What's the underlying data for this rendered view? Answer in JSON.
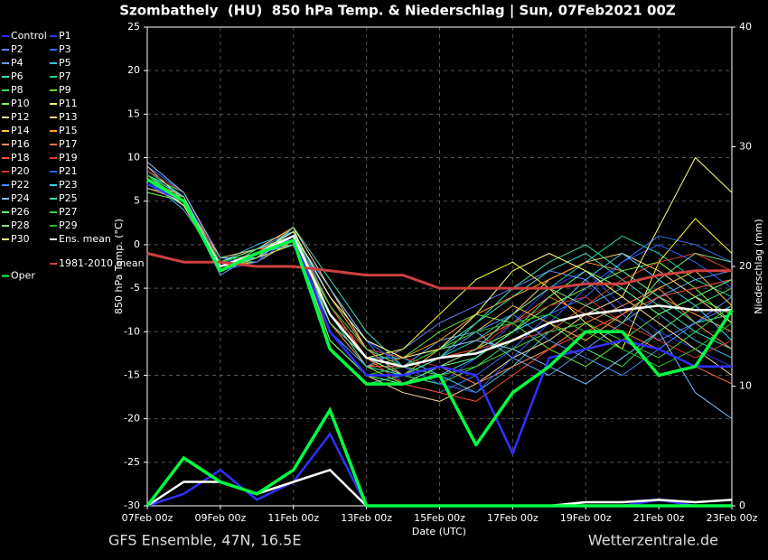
{
  "chart_data": {
    "type": "line",
    "title": "Szombathely  (HU)  850 hPa Temp. & Niederschlag | Sun, 07Feb2021 00Z",
    "ylabel": "850 hPa Temp. (°C)",
    "y2label": "Niederschlag (mm)",
    "xlabel": "Date (UTC)",
    "footer_left": "GFS Ensemble, 47N, 16.5E",
    "footer_right": "Wetterzentrale.de",
    "x": [
      0,
      1,
      2,
      3,
      4,
      5,
      6,
      7,
      8,
      9,
      10,
      11,
      12,
      13,
      14,
      15,
      16
    ],
    "xlim": [
      0,
      16
    ],
    "xticks": [
      {
        "value": 0,
        "label": "07Feb 00z"
      },
      {
        "value": 2,
        "label": "09Feb 00z"
      },
      {
        "value": 4,
        "label": "11Feb 00z"
      },
      {
        "value": 6,
        "label": "13Feb 00z"
      },
      {
        "value": 8,
        "label": "15Feb 00z"
      },
      {
        "value": 10,
        "label": "17Feb 00z"
      },
      {
        "value": 12,
        "label": "19Feb 00z"
      },
      {
        "value": 14,
        "label": "21Feb 00z"
      },
      {
        "value": 16,
        "label": "23Feb 00z"
      }
    ],
    "ylim": [
      -30,
      25
    ],
    "yticks": [
      -30,
      -25,
      -20,
      -15,
      -10,
      -5,
      0,
      5,
      10,
      15,
      20,
      25
    ],
    "y2lim": [
      0,
      40
    ],
    "y2ticks": [
      0,
      10,
      20,
      30,
      40
    ],
    "grid": true,
    "series": [
      {
        "name": "Control",
        "color": "#3030ff",
        "values": [
          7,
          5,
          -2.5,
          -1,
          1,
          -10,
          -15,
          -15,
          -14,
          -15,
          -24,
          -13,
          -12,
          -11,
          -12,
          -14,
          -14
        ],
        "precip": [
          0,
          1,
          3,
          0.5,
          2,
          6,
          0,
          0,
          0,
          0,
          0,
          0,
          0,
          0,
          0.5,
          0,
          0
        ]
      },
      {
        "name": "P1",
        "color": "#2040e0",
        "values": [
          8,
          5.5,
          -2,
          -1.5,
          1.5,
          -6,
          -12,
          -15,
          -16,
          -13,
          -9,
          -5,
          -3,
          -7,
          -10,
          -12,
          -14
        ]
      },
      {
        "name": "P2",
        "color": "#6080ff",
        "values": [
          7,
          4.5,
          -3,
          -0.5,
          0.5,
          -9,
          -14,
          -12,
          -9,
          -7,
          -5,
          -3,
          -4,
          -8,
          -11,
          -9,
          -6
        ]
      },
      {
        "name": "P3",
        "color": "#3070ff",
        "values": [
          9,
          6,
          -1.5,
          -2,
          2,
          -5,
          -11,
          -16,
          -17,
          -15,
          -12,
          -8,
          -6,
          -2,
          1,
          0,
          -2
        ]
      },
      {
        "name": "P4",
        "color": "#60a0ff",
        "values": [
          6.5,
          5,
          -3.5,
          -1,
          0,
          -10,
          -15,
          -14,
          -11,
          -10,
          -13,
          -15,
          -12,
          -9,
          -6,
          -4,
          -3
        ]
      },
      {
        "name": "P5",
        "color": "#40c0e0",
        "values": [
          7.5,
          4,
          -2,
          0,
          1.5,
          -7,
          -13,
          -13,
          -15,
          -17,
          -14,
          -10,
          -7,
          -5,
          -8,
          -11,
          -13
        ]
      },
      {
        "name": "P6",
        "color": "#40e0c0",
        "values": [
          8.5,
          5.5,
          -2.5,
          -1.5,
          2,
          -4,
          -10,
          -14,
          -12,
          -9,
          -6,
          -3,
          -1,
          -4,
          -7,
          -10,
          -12
        ]
      },
      {
        "name": "P7",
        "color": "#20d0a0",
        "values": [
          7,
          5,
          -3,
          -1,
          1,
          -12,
          -16,
          -15,
          -13,
          -11,
          -8,
          -5,
          -2,
          1,
          -1,
          -4,
          -6
        ]
      },
      {
        "name": "P8",
        "color": "#40e060",
        "values": [
          8,
          6,
          -2,
          -2,
          0.5,
          -8,
          -13,
          -15,
          -16,
          -14,
          -11,
          -9,
          -12,
          -14,
          -10,
          -7,
          -5
        ]
      },
      {
        "name": "P9",
        "color": "#60e040",
        "values": [
          7.5,
          4.5,
          -3,
          -0.5,
          1,
          -6,
          -12,
          -13,
          -10,
          -8,
          -9,
          -12,
          -14,
          -11,
          -8,
          -6,
          -8
        ]
      },
      {
        "name": "P10",
        "color": "#80ff40",
        "values": [
          6,
          5,
          -2,
          -1,
          1.5,
          -9,
          -14,
          -16,
          -14,
          -12,
          -10,
          -7,
          -5,
          -3,
          -2,
          -5,
          -9
        ]
      },
      {
        "name": "P11",
        "color": "#ffff40",
        "values": [
          8,
          5,
          -3,
          -1.5,
          0,
          -7,
          -13,
          -12,
          -8,
          -4,
          -2,
          -5,
          -9,
          -12,
          -2,
          3,
          -1
        ]
      },
      {
        "name": "P12",
        "color": "#ffe0a0",
        "values": [
          7.5,
          5.5,
          -2.5,
          -1,
          1,
          -11,
          -15,
          -17,
          -18,
          -16,
          -13,
          -11,
          -8,
          -6,
          -9,
          -12,
          -15
        ]
      },
      {
        "name": "P13",
        "color": "#ffd080",
        "values": [
          9,
          5,
          -1.5,
          -0.5,
          2,
          -5,
          -12,
          -14,
          -13,
          -12,
          -8,
          -4,
          -2,
          -1,
          -3,
          -6,
          -9
        ]
      },
      {
        "name": "P14",
        "color": "#ffc040",
        "values": [
          7,
          4.5,
          -2.5,
          -2,
          0.5,
          -8,
          -13,
          -15,
          -12,
          -10,
          -7,
          -9,
          -11,
          -8,
          -5,
          -3,
          -7
        ]
      },
      {
        "name": "P15",
        "color": "#ffa020",
        "values": [
          8,
          5,
          -2,
          -1,
          1,
          -10,
          -14,
          -13,
          -11,
          -8,
          -6,
          -4,
          -2,
          -3,
          -6,
          -8,
          -10
        ]
      },
      {
        "name": "P16",
        "color": "#ff9060",
        "values": [
          7.5,
          5.5,
          -3,
          -1,
          1.5,
          -6,
          -12,
          -15,
          -14,
          -16,
          -14,
          -12,
          -9,
          -7,
          -5,
          -9,
          -12
        ]
      },
      {
        "name": "P17",
        "color": "#ff7040",
        "values": [
          6.5,
          5,
          -2,
          -0.5,
          0,
          -9,
          -14,
          -14,
          -12,
          -11,
          -9,
          -6,
          -8,
          -10,
          -12,
          -14,
          -16
        ]
      },
      {
        "name": "P18",
        "color": "#ff5030",
        "values": [
          8,
          4.5,
          -3,
          -1.5,
          1,
          -7,
          -13,
          -16,
          -17,
          -18,
          -15,
          -12,
          -10,
          -8,
          -6,
          -5,
          -4
        ]
      },
      {
        "name": "P19",
        "color": "#e04020",
        "values": [
          7,
          5,
          -2.5,
          -1,
          2,
          -11,
          -15,
          -15,
          -13,
          -12,
          -11,
          -10,
          -7,
          -4,
          -2,
          -1,
          -3
        ]
      },
      {
        "name": "P20",
        "color": "#d03030",
        "values": [
          8.5,
          6,
          -2,
          -1,
          0.5,
          -8,
          -12,
          -13,
          -14,
          -12,
          -9,
          -7,
          -6,
          -9,
          -11,
          -13,
          -11
        ]
      },
      {
        "name": "P21",
        "color": "#3060ff",
        "values": [
          7.5,
          5,
          -3,
          -2,
          1,
          -6,
          -11,
          -14,
          -16,
          -17,
          -13,
          -9,
          -5,
          -2,
          0,
          -2,
          -5
        ]
      },
      {
        "name": "P22",
        "color": "#4090ff",
        "values": [
          7,
          4.5,
          -2,
          -0.5,
          1.5,
          -10,
          -14,
          -15,
          -13,
          -10,
          -8,
          -11,
          -13,
          -15,
          -12,
          -9,
          -7
        ]
      },
      {
        "name": "P23",
        "color": "#40d0ff",
        "values": [
          8,
          5.5,
          -2.5,
          -1,
          0,
          -9,
          -13,
          -14,
          -15,
          -13,
          -10,
          -8,
          -4,
          -1,
          -4,
          -7,
          -11
        ]
      },
      {
        "name": "P24",
        "color": "#80c0ff",
        "values": [
          9.5,
          6,
          -1.5,
          -1.5,
          1,
          -5,
          -11,
          -13,
          -12,
          -11,
          -12,
          -14,
          -16,
          -13,
          -10,
          -17,
          -20
        ]
      },
      {
        "name": "P25",
        "color": "#40e0a0",
        "values": [
          7,
          5,
          -3,
          -1,
          1.5,
          -8,
          -14,
          -15,
          -13,
          -9,
          -5,
          -2,
          0,
          -3,
          -6,
          -9,
          -8
        ]
      },
      {
        "name": "P26",
        "color": "#60ff80",
        "values": [
          8,
          4.5,
          -2,
          -0.5,
          1,
          -11,
          -15,
          -16,
          -14,
          -13,
          -10,
          -6,
          -3,
          -5,
          -8,
          -6,
          -4
        ]
      },
      {
        "name": "P27",
        "color": "#40d040",
        "values": [
          7.5,
          5,
          -2.5,
          -1,
          0.5,
          -7,
          -12,
          -14,
          -15,
          -14,
          -12,
          -10,
          -9,
          -11,
          -13,
          -10,
          -7
        ]
      },
      {
        "name": "P28",
        "color": "#80e080",
        "values": [
          6.5,
          5.5,
          -3,
          -1.5,
          2,
          -9,
          -13,
          -15,
          -14,
          -12,
          -8,
          -5,
          -7,
          -9,
          -4,
          -1,
          -2
        ]
      },
      {
        "name": "P29",
        "color": "#20c020",
        "values": [
          8,
          5,
          -2,
          -1,
          1,
          -10,
          -15,
          -14,
          -12,
          -10,
          -9,
          -8,
          -10,
          -12,
          -14,
          -12,
          -9
        ]
      },
      {
        "name": "P30",
        "color": "#ffff80",
        "values": [
          7.5,
          4.5,
          -2.5,
          -1,
          1.5,
          -6,
          -11,
          -13,
          -12,
          -8,
          -3,
          -1,
          -3,
          -6,
          2,
          10,
          6
        ]
      },
      {
        "name": "Ens. mean",
        "color": "#ffffff",
        "values": [
          7.5,
          5,
          -2.5,
          -1,
          1,
          -8,
          -13,
          -14,
          -13,
          -12.5,
          -11,
          -9,
          -8,
          -7.5,
          -7,
          -7.5,
          -7.5
        ],
        "precip": [
          0,
          2,
          2,
          1,
          2,
          3,
          0,
          0,
          0,
          0,
          0,
          0,
          0.3,
          0.3,
          0.5,
          0.3,
          0.5
        ]
      },
      {
        "name": "1981-2010 mean",
        "color": "#d04040",
        "values": [
          -1,
          -2,
          -2,
          -2.5,
          -2.5,
          -3,
          -3.5,
          -3.5,
          -5,
          -5,
          -5,
          -5,
          -4.5,
          -4.5,
          -3.5,
          -3,
          -3
        ]
      },
      {
        "name": "Oper",
        "color": "#00ff40",
        "values": [
          7.5,
          5,
          -3,
          -1,
          0.5,
          -12,
          -16,
          -16,
          -15,
          -23,
          -17,
          -14,
          -10,
          -10,
          -15,
          -14,
          -7.5
        ],
        "precip": [
          0,
          4,
          2,
          1,
          3,
          8,
          0,
          0,
          0,
          0,
          0,
          0,
          0,
          0,
          0,
          0,
          0
        ]
      }
    ]
  }
}
